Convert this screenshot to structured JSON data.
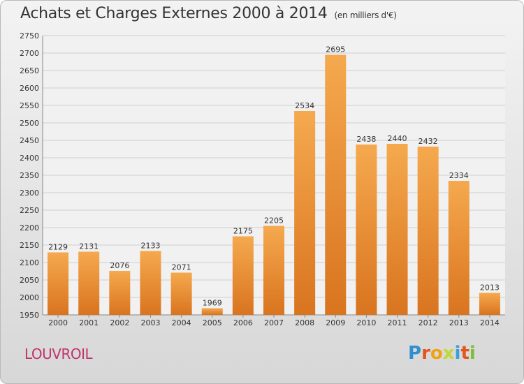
{
  "title": "Achats et Charges Externes 2000 à 2014",
  "subtitle": "(en milliers d'€)",
  "location": "LOUVROIL",
  "brand": {
    "letters": [
      "P",
      "r",
      "o",
      "x",
      "i",
      "t",
      "i"
    ],
    "colors": [
      "#2f8fd0",
      "#e4541b",
      "#f1a114",
      "#c2d834",
      "#3aa0d8",
      "#e4541b",
      "#7cbf3b"
    ]
  },
  "colors": {
    "bar_light": "#f5a94e",
    "bar_dark": "#d9741f",
    "grid": "#cfcfcf"
  },
  "chart_data": {
    "type": "bar",
    "title": "Achats et Charges Externes 2000 à 2014",
    "subtitle": "(en milliers d'€)",
    "xlabel": "",
    "ylabel": "",
    "categories": [
      "2000",
      "2001",
      "2002",
      "2003",
      "2004",
      "2005",
      "2006",
      "2007",
      "2008",
      "2009",
      "2010",
      "2011",
      "2012",
      "2013",
      "2014"
    ],
    "values": [
      2129,
      2131,
      2076,
      2133,
      2071,
      1969,
      2175,
      2205,
      2534,
      2695,
      2438,
      2440,
      2432,
      2334,
      2013
    ],
    "ylim": [
      1950,
      2750
    ],
    "yticks": [
      1950,
      2000,
      2050,
      2100,
      2150,
      2200,
      2250,
      2300,
      2350,
      2400,
      2450,
      2500,
      2550,
      2600,
      2650,
      2700,
      2750
    ],
    "grid": true,
    "data_labels": true
  }
}
